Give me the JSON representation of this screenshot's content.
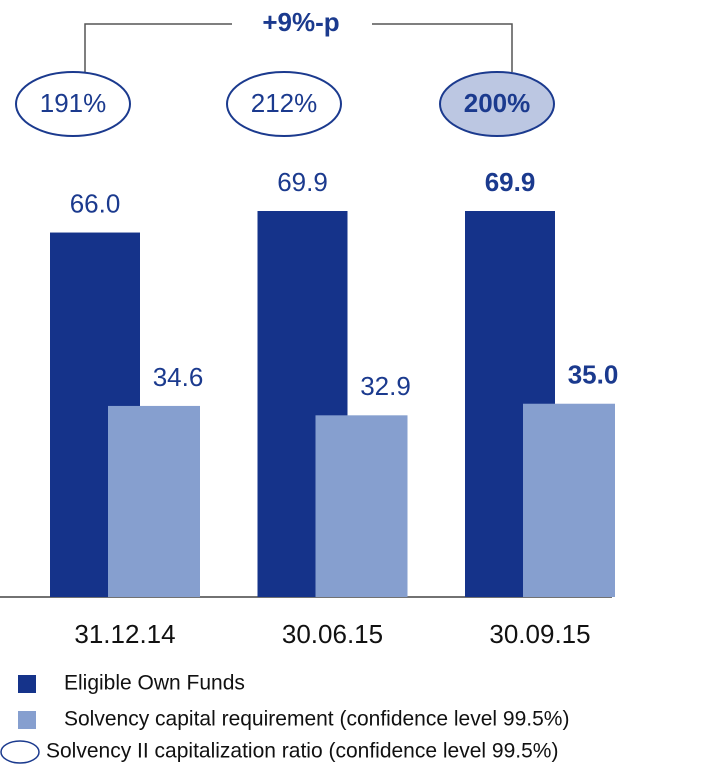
{
  "chart_data": {
    "type": "bar",
    "categories": [
      "31.12.14",
      "30.06.15",
      "30.09.15"
    ],
    "series": [
      {
        "name": "Eligible Own Funds",
        "color": "#15338a",
        "values": [
          66.0,
          69.9,
          69.9
        ],
        "value_labels": [
          "66.0",
          "69.9",
          "69.9"
        ]
      },
      {
        "name": "Solvency capital requirement (confidence level 99.5%)",
        "color": "#869fcf",
        "values": [
          34.6,
          32.9,
          35.0
        ],
        "value_labels": [
          "34.6",
          "32.9",
          "35.0"
        ]
      }
    ],
    "ratio": {
      "name": "Solvency II capitalization ratio (confidence level 99.5%)",
      "values": [
        191,
        212,
        200
      ],
      "value_labels": [
        "191%",
        "212%",
        "200%"
      ]
    },
    "annotation": "+9%-p"
  }
}
